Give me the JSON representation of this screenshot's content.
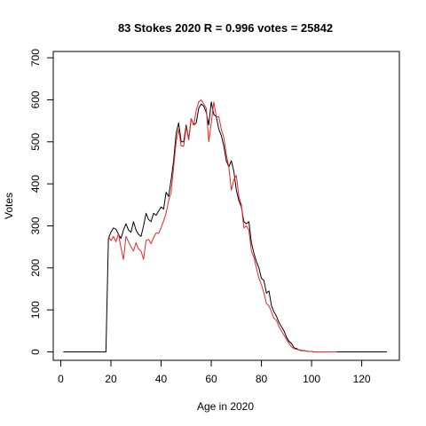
{
  "chart_data": {
    "type": "line",
    "title": "83 Stokes 2020 R = 0.996 votes = 25842",
    "xlabel": "Age in 2020",
    "ylabel": "Votes",
    "xlim": [
      -3,
      135
    ],
    "ylim": [
      -20,
      715
    ],
    "xticks": [
      0,
      20,
      40,
      60,
      80,
      100,
      120
    ],
    "yticks": [
      0,
      100,
      200,
      300,
      400,
      500,
      600,
      700
    ],
    "grid": false,
    "series": [
      {
        "color": "#000000",
        "x": [
          1,
          2,
          3,
          4,
          5,
          6,
          7,
          8,
          9,
          10,
          11,
          12,
          13,
          14,
          15,
          16,
          17,
          18,
          19,
          20,
          21,
          22,
          23,
          24,
          25,
          26,
          27,
          28,
          29,
          30,
          31,
          32,
          33,
          34,
          35,
          36,
          37,
          38,
          39,
          40,
          41,
          42,
          43,
          44,
          45,
          46,
          47,
          48,
          49,
          50,
          51,
          52,
          53,
          54,
          55,
          56,
          57,
          58,
          59,
          60,
          61,
          62,
          63,
          64,
          65,
          66,
          67,
          68,
          69,
          70,
          71,
          72,
          73,
          74,
          75,
          76,
          77,
          78,
          79,
          80,
          81,
          82,
          83,
          84,
          85,
          86,
          87,
          88,
          89,
          90,
          91,
          92,
          93,
          94,
          95,
          96,
          97,
          98,
          99,
          100,
          101,
          102,
          103,
          104,
          105,
          106,
          107,
          108,
          109,
          110,
          111,
          112,
          113,
          114,
          115,
          116,
          117,
          118,
          119,
          120,
          121,
          122,
          123,
          124,
          125,
          126,
          127,
          128,
          129,
          130
        ],
        "y": [
          0,
          0,
          0,
          0,
          0,
          0,
          0,
          0,
          0,
          0,
          0,
          0,
          0,
          0,
          0,
          0,
          0,
          0,
          270,
          285,
          295,
          292,
          280,
          270,
          290,
          305,
          290,
          285,
          310,
          290,
          280,
          275,
          300,
          330,
          315,
          310,
          330,
          325,
          335,
          345,
          340,
          380,
          370,
          410,
          455,
          520,
          545,
          500,
          500,
          540,
          505,
          555,
          540,
          545,
          580,
          590,
          585,
          570,
          540,
          595,
          565,
          560,
          530,
          515,
          490,
          455,
          440,
          455,
          430,
          385,
          360,
          345,
          310,
          305,
          310,
          260,
          235,
          215,
          200,
          175,
          170,
          140,
          145,
          110,
          95,
          85,
          70,
          60,
          50,
          35,
          25,
          20,
          10,
          8,
          5,
          3,
          3,
          2,
          1,
          1,
          0,
          0,
          0,
          0,
          0,
          0,
          0,
          0,
          0,
          0,
          0,
          0,
          0,
          0,
          0,
          0,
          0,
          0,
          0,
          0,
          0,
          0,
          0,
          0,
          0,
          0,
          0,
          0,
          0,
          0
        ]
      },
      {
        "color": "#e8262b",
        "x": [
          19,
          20,
          21,
          22,
          23,
          24,
          25,
          26,
          27,
          28,
          29,
          30,
          31,
          32,
          33,
          34,
          35,
          36,
          37,
          38,
          39,
          40,
          41,
          42,
          43,
          44,
          45,
          46,
          47,
          48,
          49,
          50,
          51,
          52,
          53,
          54,
          55,
          56,
          57,
          58,
          59,
          60,
          61,
          62,
          63,
          64,
          65,
          66,
          67,
          68,
          69,
          70,
          71,
          72,
          73,
          74,
          75,
          76,
          77,
          78,
          79,
          80,
          81,
          82,
          83,
          84,
          85,
          86,
          87,
          88,
          89,
          90,
          91,
          92,
          93,
          94,
          95,
          96,
          97,
          98,
          99,
          100,
          101,
          102,
          103,
          104,
          105,
          106,
          107,
          108,
          109,
          110
        ],
        "y": [
          275,
          265,
          275,
          262,
          282,
          248,
          220,
          275,
          262,
          250,
          240,
          260,
          245,
          240,
          220,
          265,
          268,
          258,
          272,
          283,
          282,
          295,
          312,
          330,
          360,
          380,
          440,
          500,
          530,
          490,
          490,
          535,
          505,
          555,
          540,
          575,
          595,
          600,
          590,
          580,
          500,
          545,
          595,
          560,
          560,
          530,
          510,
          470,
          440,
          385,
          410,
          420,
          370,
          350,
          295,
          300,
          290,
          240,
          225,
          200,
          175,
          160,
          140,
          115,
          110,
          95,
          80,
          75,
          60,
          50,
          40,
          30,
          20,
          12,
          8,
          6,
          5,
          4,
          3,
          2,
          1,
          1,
          0,
          0,
          0,
          0,
          0,
          0,
          0,
          0,
          0,
          0
        ]
      }
    ]
  }
}
